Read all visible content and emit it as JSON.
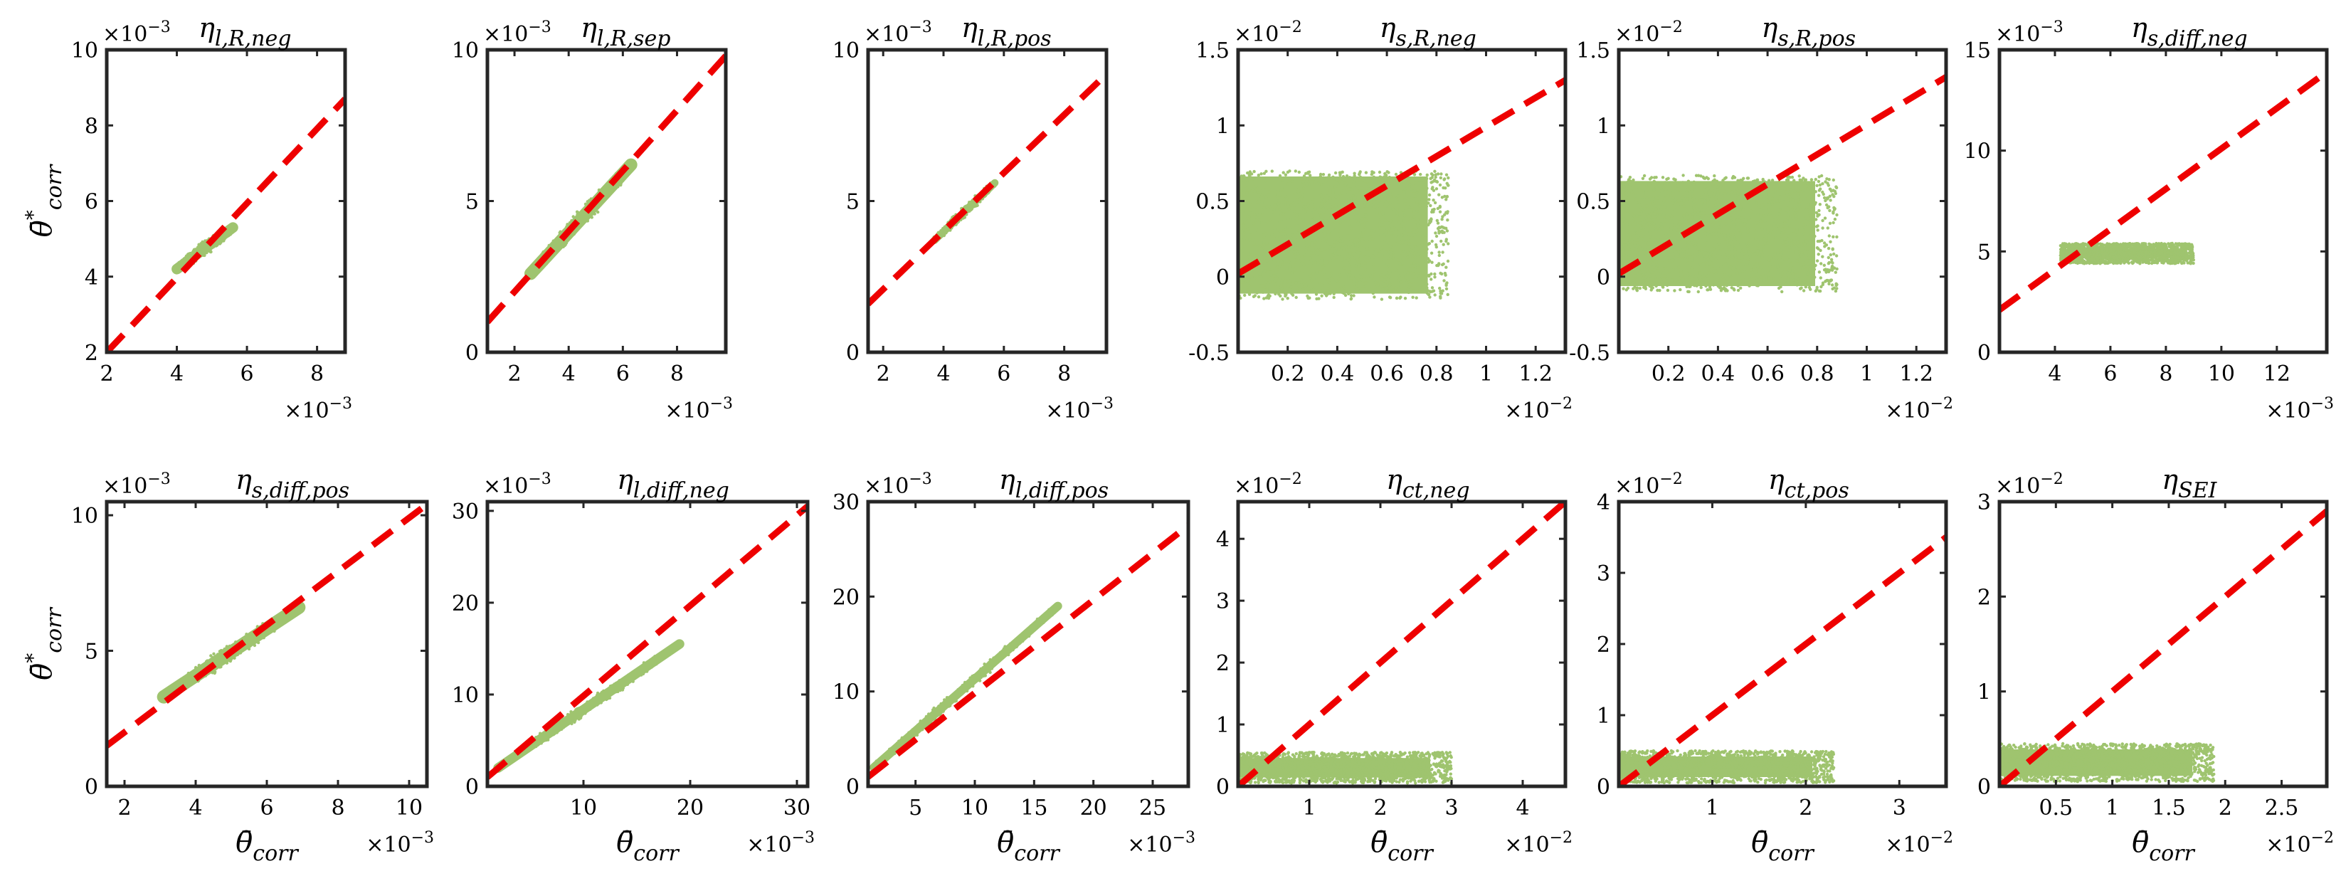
{
  "figure": {
    "colors": {
      "scatter": "#9fc46f",
      "fit_line": "#ee0000",
      "axes": "#262626"
    },
    "ylabel": "θ̄*corr",
    "xlabel": "θ̄corr"
  },
  "chart_data": [
    {
      "type": "scatter",
      "title": "ηl,R,neg",
      "title_main": "η",
      "title_sub": "l,R,neg",
      "xlim": [
        2,
        8.8
      ],
      "ylim": [
        2,
        10
      ],
      "xticks": [
        2,
        4,
        6,
        8
      ],
      "yticks": [
        2,
        4,
        6,
        8,
        10
      ],
      "xticklabels": [
        "2",
        "4",
        "6",
        "8"
      ],
      "yticklabels": [
        "2",
        "4",
        "6",
        "8",
        "10"
      ],
      "x_exponent": "×10−3",
      "y_exponent": "×10−3",
      "ylabel": "θ̄*corr",
      "xlabel": "",
      "fit": [
        [
          2,
          2
        ],
        [
          8.8,
          8.7
        ]
      ],
      "cloud": {
        "shape": "band",
        "from": [
          4.0,
          4.2
        ],
        "to": [
          5.6,
          5.3
        ],
        "width": 0.4
      }
    },
    {
      "type": "scatter",
      "title": "ηl,R,sep",
      "title_main": "η",
      "title_sub": "l,R,sep",
      "xlim": [
        1,
        9.8
      ],
      "ylim": [
        0,
        10
      ],
      "xticks": [
        2,
        4,
        6,
        8
      ],
      "yticks": [
        0,
        5,
        10
      ],
      "xticklabels": [
        "2",
        "4",
        "6",
        "8"
      ],
      "yticklabels": [
        "0",
        "5",
        "10"
      ],
      "x_exponent": "×10−3",
      "y_exponent": "×10−3",
      "ylabel": "",
      "xlabel": "",
      "fit": [
        [
          1,
          1
        ],
        [
          9.8,
          9.8
        ]
      ],
      "cloud": {
        "shape": "band",
        "from": [
          2.6,
          2.6
        ],
        "to": [
          6.3,
          6.2
        ],
        "width": 0.6
      }
    },
    {
      "type": "scatter",
      "title": "ηl,R,pos",
      "title_main": "η",
      "title_sub": "l,R,pos",
      "xlim": [
        1.5,
        9.4
      ],
      "ylim": [
        0,
        10
      ],
      "xticks": [
        2,
        4,
        6,
        8
      ],
      "yticks": [
        0,
        5,
        10
      ],
      "xticklabels": [
        "2",
        "4",
        "6",
        "8"
      ],
      "yticklabels": [
        "0",
        "5",
        "10"
      ],
      "x_exponent": "×10−3",
      "y_exponent": "×10−3",
      "ylabel": "",
      "xlabel": "",
      "fit": [
        [
          1.5,
          1.6
        ],
        [
          9.4,
          9.2
        ]
      ],
      "cloud": {
        "shape": "band",
        "from": [
          3.7,
          3.7
        ],
        "to": [
          5.7,
          5.6
        ],
        "width": 0.35
      }
    },
    {
      "type": "scatter",
      "title": "ηs,R,neg",
      "title_main": "η",
      "title_sub": "s,R,neg",
      "xlim": [
        0,
        1.32
      ],
      "ylim": [
        -0.5,
        1.5
      ],
      "xticks": [
        0.2,
        0.4,
        0.6,
        0.8,
        1,
        1.2
      ],
      "yticks": [
        -0.5,
        0,
        0.5,
        1,
        1.5
      ],
      "xticklabels": [
        "0.2",
        "0.4",
        "0.6",
        "0.8",
        "1",
        "1.2"
      ],
      "yticklabels": [
        "-0.5",
        "0",
        "0.5",
        "1",
        "1.5"
      ],
      "x_exponent": "×10−2",
      "y_exponent": "×10−2",
      "ylabel": "",
      "xlabel": "",
      "fit": [
        [
          0,
          0.02
        ],
        [
          1.32,
          1.3
        ]
      ],
      "cloud": {
        "shape": "rect",
        "x": [
          0,
          0.85
        ],
        "y": [
          -0.15,
          0.7
        ]
      }
    },
    {
      "type": "scatter",
      "title": "ηs,R,pos",
      "title_main": "η",
      "title_sub": "s,R,pos",
      "xlim": [
        0,
        1.32
      ],
      "ylim": [
        -0.5,
        1.5
      ],
      "xticks": [
        0.2,
        0.4,
        0.6,
        0.8,
        1,
        1.2
      ],
      "yticks": [
        -0.5,
        0,
        0.5,
        1,
        1.5
      ],
      "xticklabels": [
        "0.2",
        "0.4",
        "0.6",
        "0.8",
        "1",
        "1.2"
      ],
      "yticklabels": [
        "-0.5",
        "0",
        "0.5",
        "1",
        "1.5"
      ],
      "x_exponent": "×10−2",
      "y_exponent": "×10−2",
      "ylabel": "",
      "xlabel": "",
      "fit": [
        [
          0,
          0.02
        ],
        [
          1.32,
          1.32
        ]
      ],
      "cloud": {
        "shape": "rect",
        "x": [
          0,
          0.88
        ],
        "y": [
          -0.1,
          0.67
        ]
      }
    },
    {
      "type": "scatter",
      "title": "ηs,diff,neg",
      "title_main": "η",
      "title_sub": "s,diff,neg",
      "xlim": [
        2,
        13.8
      ],
      "ylim": [
        0,
        15
      ],
      "xticks": [
        4,
        6,
        8,
        10,
        12
      ],
      "yticks": [
        0,
        5,
        10,
        15
      ],
      "xticklabels": [
        "4",
        "6",
        "8",
        "10",
        "12"
      ],
      "yticklabels": [
        "0",
        "5",
        "10",
        "15"
      ],
      "x_exponent": "×10−3",
      "y_exponent": "×10−3",
      "ylabel": "",
      "xlabel": "",
      "fit": [
        [
          2,
          2.1
        ],
        [
          13.8,
          13.9
        ]
      ],
      "cloud": {
        "shape": "rect",
        "x": [
          4.2,
          9.0
        ],
        "y": [
          4.4,
          5.4
        ]
      }
    },
    {
      "type": "scatter",
      "title": "ηs,diff,pos",
      "title_main": "η",
      "title_sub": "s,diff,pos",
      "xlim": [
        1.5,
        10.5
      ],
      "ylim": [
        0,
        10.5
      ],
      "xticks": [
        2,
        4,
        6,
        8,
        10
      ],
      "yticks": [
        0,
        5,
        10
      ],
      "xticklabels": [
        "2",
        "4",
        "6",
        "8",
        "10"
      ],
      "yticklabels": [
        "0",
        "5",
        "10"
      ],
      "x_exponent": "×10−3",
      "y_exponent": "×10−3",
      "ylabel": "θ̄*corr",
      "xlabel": "θ̄corr",
      "fit": [
        [
          1.5,
          1.5
        ],
        [
          10.5,
          10.4
        ]
      ],
      "cloud": {
        "shape": "band",
        "from": [
          3.1,
          3.3
        ],
        "to": [
          6.9,
          6.6
        ],
        "width": 0.7
      }
    },
    {
      "type": "scatter",
      "title": "ηl,diff,neg",
      "title_main": "η",
      "title_sub": "l,diff,neg",
      "xlim": [
        1,
        31
      ],
      "ylim": [
        0,
        31
      ],
      "xticks": [
        10,
        20,
        30
      ],
      "yticks": [
        0,
        10,
        20,
        30
      ],
      "xticklabels": [
        "10",
        "20",
        "30"
      ],
      "yticklabels": [
        "0",
        "10",
        "20",
        "30"
      ],
      "x_exponent": "×10−3",
      "y_exponent": "×10−3",
      "ylabel": "",
      "xlabel": "θ̄corr",
      "fit": [
        [
          1,
          1
        ],
        [
          31,
          30.5
        ]
      ],
      "cloud": {
        "shape": "band",
        "from": [
          2,
          2
        ],
        "to": [
          19,
          15.5
        ],
        "width": 1.5
      }
    },
    {
      "type": "scatter",
      "title": "ηl,diff,pos",
      "title_main": "η",
      "title_sub": "l,diff,pos",
      "xlim": [
        1,
        28
      ],
      "ylim": [
        0,
        30
      ],
      "xticks": [
        5,
        10,
        15,
        20,
        25
      ],
      "yticks": [
        0,
        10,
        20,
        30
      ],
      "xticklabels": [
        "5",
        "10",
        "15",
        "20",
        "25"
      ],
      "yticklabels": [
        "0",
        "10",
        "20",
        "30"
      ],
      "x_exponent": "×10−3",
      "y_exponent": "×10−3",
      "ylabel": "",
      "xlabel": "θ̄corr",
      "fit": [
        [
          1,
          1
        ],
        [
          28,
          27.5
        ]
      ],
      "cloud": {
        "shape": "band",
        "from": [
          1.5,
          2
        ],
        "to": [
          17,
          19
        ],
        "width": 1.3
      }
    },
    {
      "type": "scatter",
      "title": "ηct,neg",
      "title_main": "η",
      "title_sub": "ct,neg",
      "xlim": [
        0,
        4.6
      ],
      "ylim": [
        0,
        4.6
      ],
      "xticks": [
        1,
        2,
        3,
        4
      ],
      "yticks": [
        0,
        1,
        2,
        3,
        4
      ],
      "xticklabels": [
        "1",
        "2",
        "3",
        "4"
      ],
      "yticklabels": [
        "0",
        "1",
        "2",
        "3",
        "4"
      ],
      "x_exponent": "×10−2",
      "y_exponent": "×10−2",
      "ylabel": "",
      "xlabel": "θ̄corr",
      "fit": [
        [
          0,
          0
        ],
        [
          4.6,
          4.6
        ]
      ],
      "cloud": {
        "shape": "rect",
        "x": [
          0,
          3.0
        ],
        "y": [
          0.05,
          0.55
        ]
      }
    },
    {
      "type": "scatter",
      "title": "ηct,pos",
      "title_main": "η",
      "title_sub": "ct,pos",
      "xlim": [
        0,
        3.5
      ],
      "ylim": [
        0,
        4
      ],
      "xticks": [
        1,
        2,
        3
      ],
      "yticks": [
        0,
        1,
        2,
        3,
        4
      ],
      "xticklabels": [
        "1",
        "2",
        "3"
      ],
      "yticklabels": [
        "0",
        "1",
        "2",
        "3",
        "4"
      ],
      "x_exponent": "×10−2",
      "y_exponent": "×10−2",
      "ylabel": "",
      "xlabel": "θ̄corr",
      "fit": [
        [
          0,
          0
        ],
        [
          3.5,
          3.5
        ]
      ],
      "cloud": {
        "shape": "rect",
        "x": [
          0,
          2.3
        ],
        "y": [
          0.05,
          0.5
        ]
      }
    },
    {
      "type": "scatter",
      "title": "ηSEI",
      "title_main": "η",
      "title_sub": "SEI",
      "xlim": [
        0,
        2.9
      ],
      "ylim": [
        0,
        3
      ],
      "xticks": [
        0.5,
        1,
        1.5,
        2,
        2.5
      ],
      "yticks": [
        0,
        1,
        2,
        3
      ],
      "xticklabels": [
        "0.5",
        "1",
        "1.5",
        "2",
        "2.5"
      ],
      "yticklabels": [
        "0",
        "1",
        "2",
        "3"
      ],
      "x_exponent": "×10−2",
      "y_exponent": "×10−2",
      "ylabel": "",
      "xlabel": "θ̄corr",
      "fit": [
        [
          0,
          0
        ],
        [
          2.9,
          2.9
        ]
      ],
      "cloud": {
        "shape": "rect",
        "x": [
          0,
          1.9
        ],
        "y": [
          0.05,
          0.45
        ]
      }
    }
  ]
}
